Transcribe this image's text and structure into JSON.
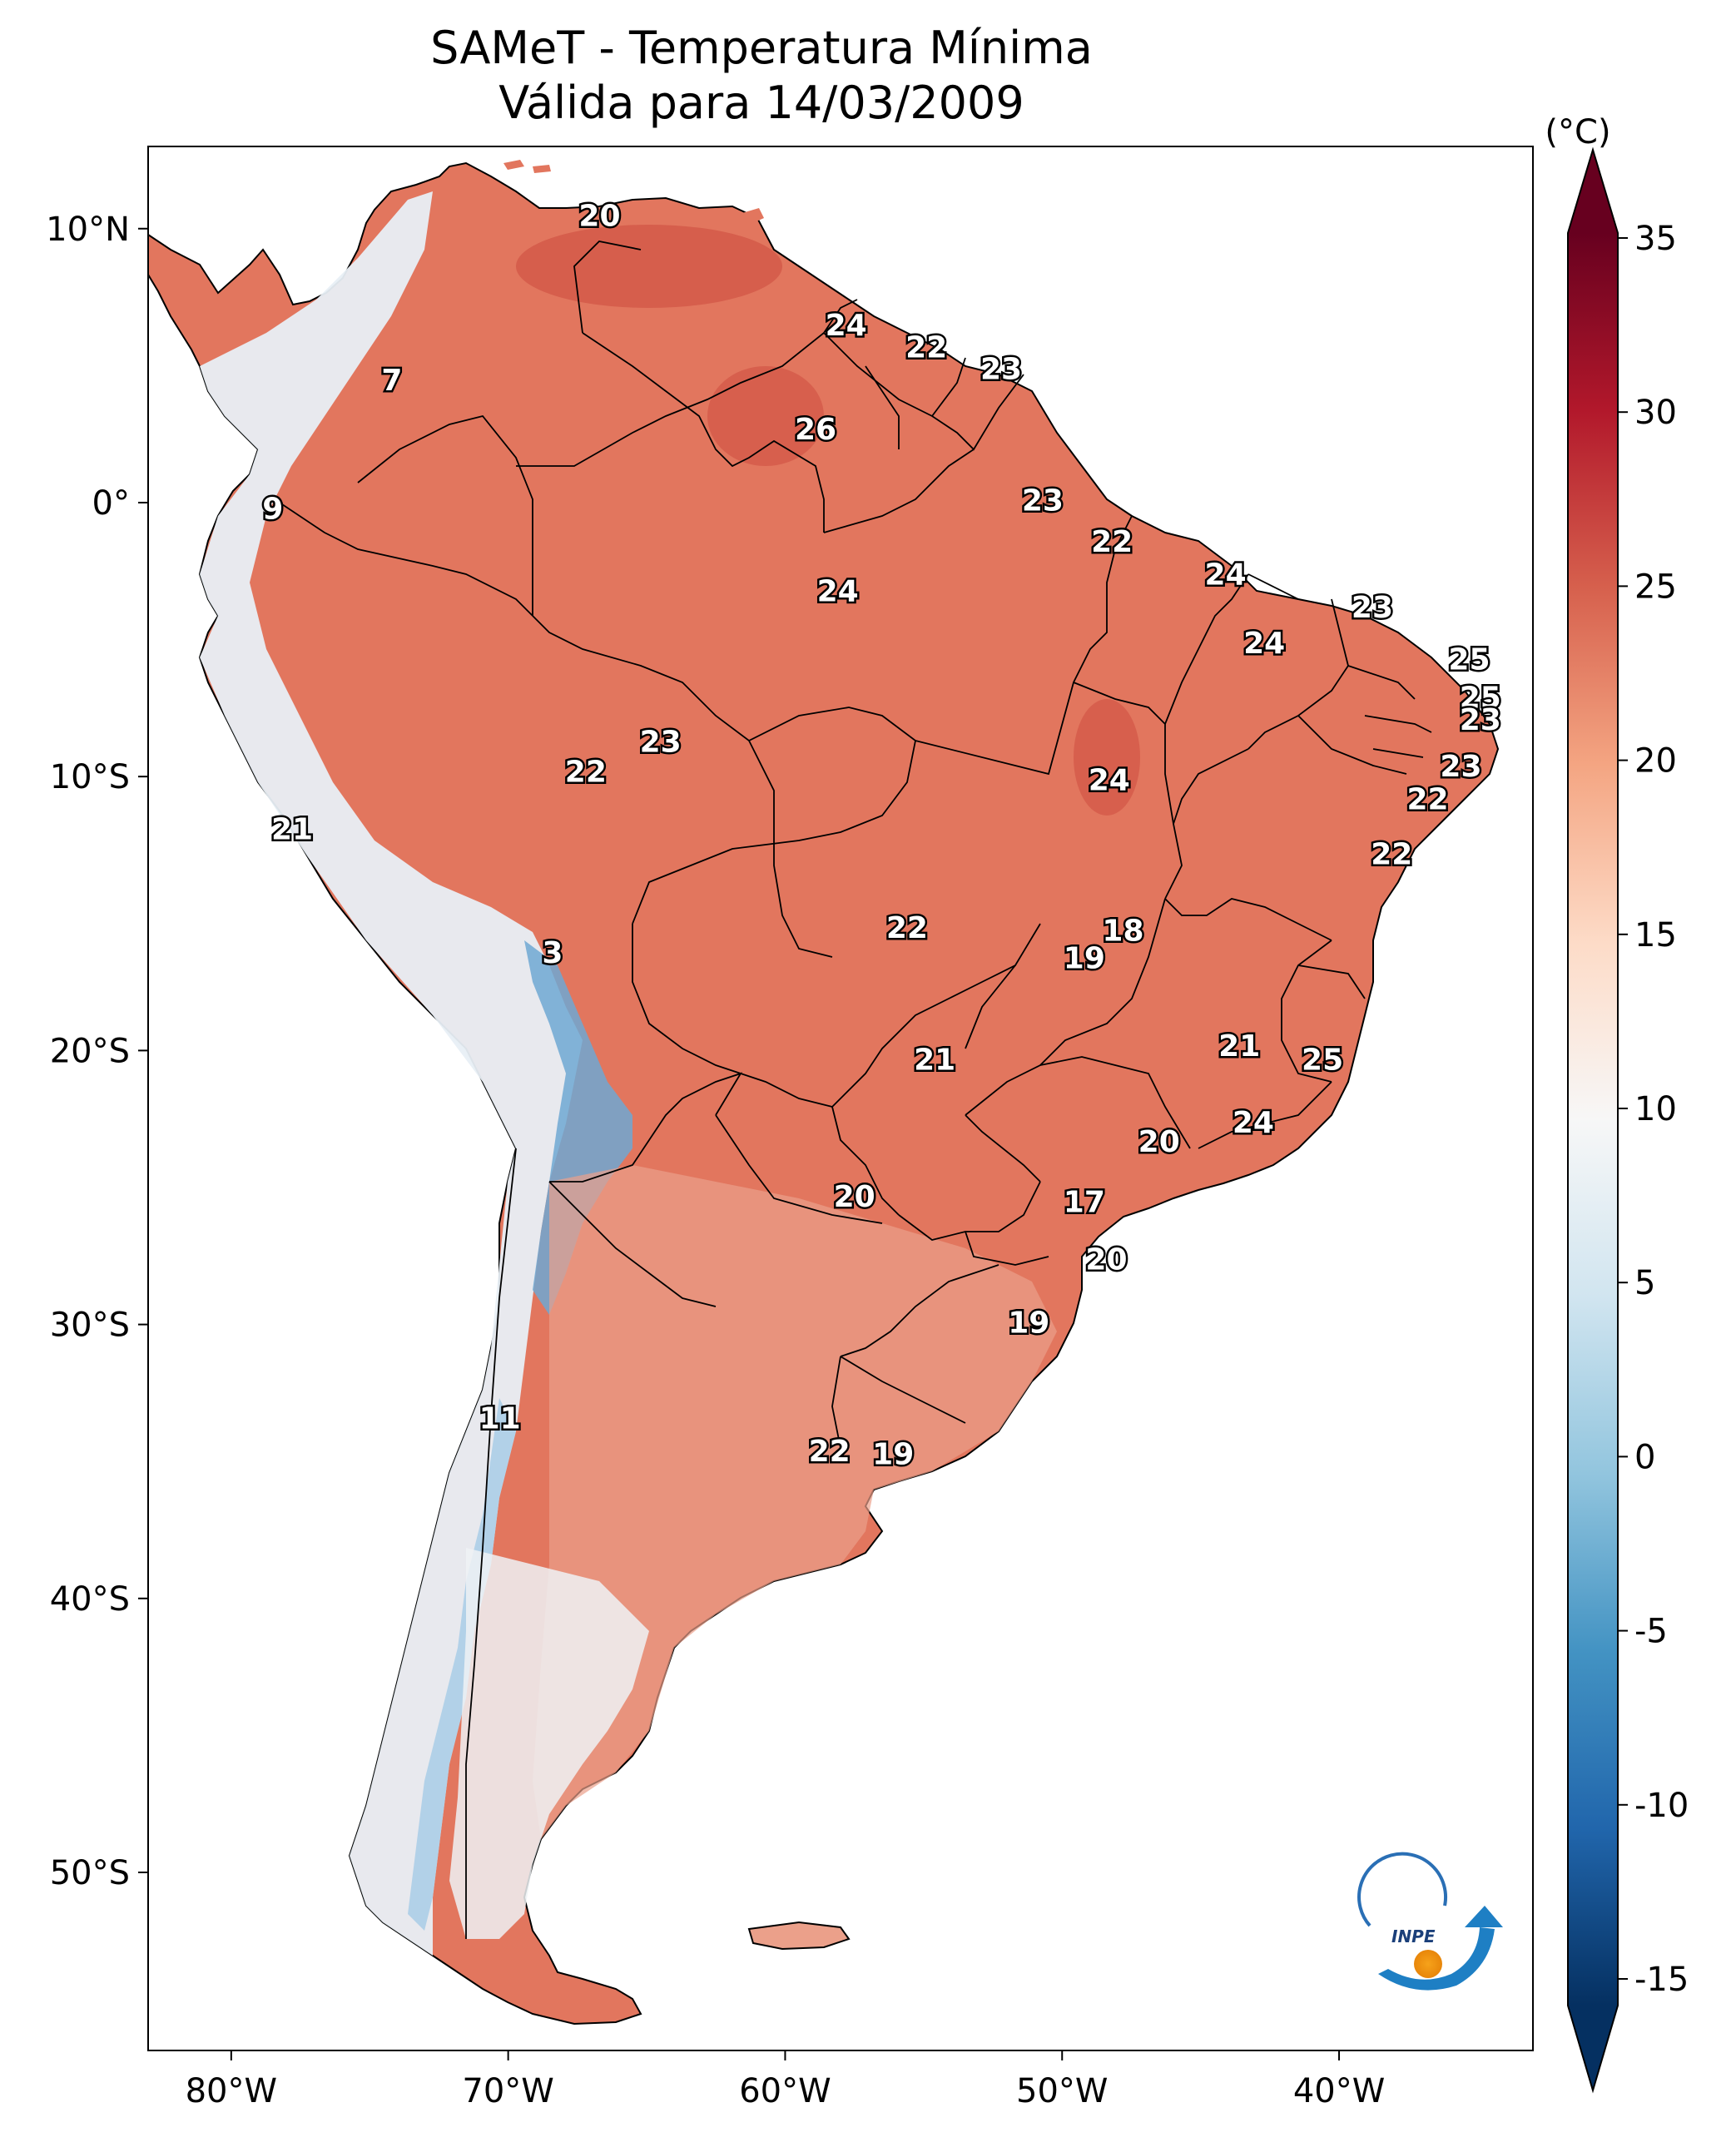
{
  "title": {
    "line1": "SAMeT - Temperatura Mínima",
    "line2": "Válida para 14/03/2009"
  },
  "colorbar": {
    "unit": "(°C)",
    "ticks": [
      "35",
      "30",
      "25",
      "20",
      "15",
      "10",
      "5",
      "0",
      "-5",
      "-10",
      "-15"
    ],
    "colors": [
      "#053061",
      "#2166ac",
      "#4393c3",
      "#92c5de",
      "#d1e5f0",
      "#f7f7f7",
      "#fddbc7",
      "#f4a582",
      "#d6604d",
      "#b2182b",
      "#67001f"
    ]
  },
  "axes": {
    "lat_ticks": [
      "10°N",
      "0°",
      "10°S",
      "20°S",
      "30°S",
      "40°S",
      "50°S"
    ],
    "lon_ticks": [
      "80°W",
      "70°W",
      "60°W",
      "50°W",
      "40°W"
    ]
  },
  "logo": {
    "text": "INPE"
  },
  "labels": [
    {
      "text": "20",
      "lon": -66.7,
      "lat": 10.5
    },
    {
      "text": "7",
      "lon": -74.2,
      "lat": 4.5
    },
    {
      "text": "9",
      "lon": -78.5,
      "lat": -0.2
    },
    {
      "text": "24",
      "lon": -57.8,
      "lat": 6.5
    },
    {
      "text": "22",
      "lon": -54.9,
      "lat": 5.7
    },
    {
      "text": "23",
      "lon": -52.2,
      "lat": 4.9
    },
    {
      "text": "26",
      "lon": -58.9,
      "lat": 2.7
    },
    {
      "text": "23",
      "lon": -50.7,
      "lat": 0.1
    },
    {
      "text": "22",
      "lon": -48.2,
      "lat": -1.4
    },
    {
      "text": "24",
      "lon": -58.1,
      "lat": -3.2
    },
    {
      "text": "24",
      "lon": -44.1,
      "lat": -2.6
    },
    {
      "text": "23",
      "lon": -38.8,
      "lat": -3.8
    },
    {
      "text": "24",
      "lon": -42.7,
      "lat": -5.1
    },
    {
      "text": "25",
      "lon": -35.3,
      "lat": -5.7
    },
    {
      "text": "25",
      "lon": -34.9,
      "lat": -7.1
    },
    {
      "text": "23",
      "lon": -34.9,
      "lat": -7.9
    },
    {
      "text": "23",
      "lon": -35.6,
      "lat": -9.6
    },
    {
      "text": "22",
      "lon": -36.8,
      "lat": -10.8
    },
    {
      "text": "23",
      "lon": -64.5,
      "lat": -8.7
    },
    {
      "text": "22",
      "lon": -67.2,
      "lat": -9.8
    },
    {
      "text": "24",
      "lon": -48.3,
      "lat": -10.1
    },
    {
      "text": "21",
      "lon": -77.8,
      "lat": -11.9
    },
    {
      "text": "22",
      "lon": -38.1,
      "lat": -12.8
    },
    {
      "text": "22",
      "lon": -55.6,
      "lat": -15.5
    },
    {
      "text": "18",
      "lon": -47.8,
      "lat": -15.6
    },
    {
      "text": "19",
      "lon": -49.2,
      "lat": -16.6
    },
    {
      "text": "3",
      "lon": -68.4,
      "lat": -16.4
    },
    {
      "text": "21",
      "lon": -54.6,
      "lat": -20.3
    },
    {
      "text": "21",
      "lon": -43.6,
      "lat": -19.8
    },
    {
      "text": "25",
      "lon": -40.6,
      "lat": -20.3
    },
    {
      "text": "24",
      "lon": -43.1,
      "lat": -22.6
    },
    {
      "text": "20",
      "lon": -46.5,
      "lat": -23.3
    },
    {
      "text": "20",
      "lon": -57.5,
      "lat": -25.3
    },
    {
      "text": "17",
      "lon": -49.2,
      "lat": -25.5
    },
    {
      "text": "20",
      "lon": -48.4,
      "lat": -27.6
    },
    {
      "text": "19",
      "lon": -51.2,
      "lat": -29.9
    },
    {
      "text": "11",
      "lon": -70.3,
      "lat": -33.4
    },
    {
      "text": "22",
      "lon": -58.4,
      "lat": -34.6
    },
    {
      "text": "19",
      "lon": -56.1,
      "lat": -34.7
    }
  ]
}
